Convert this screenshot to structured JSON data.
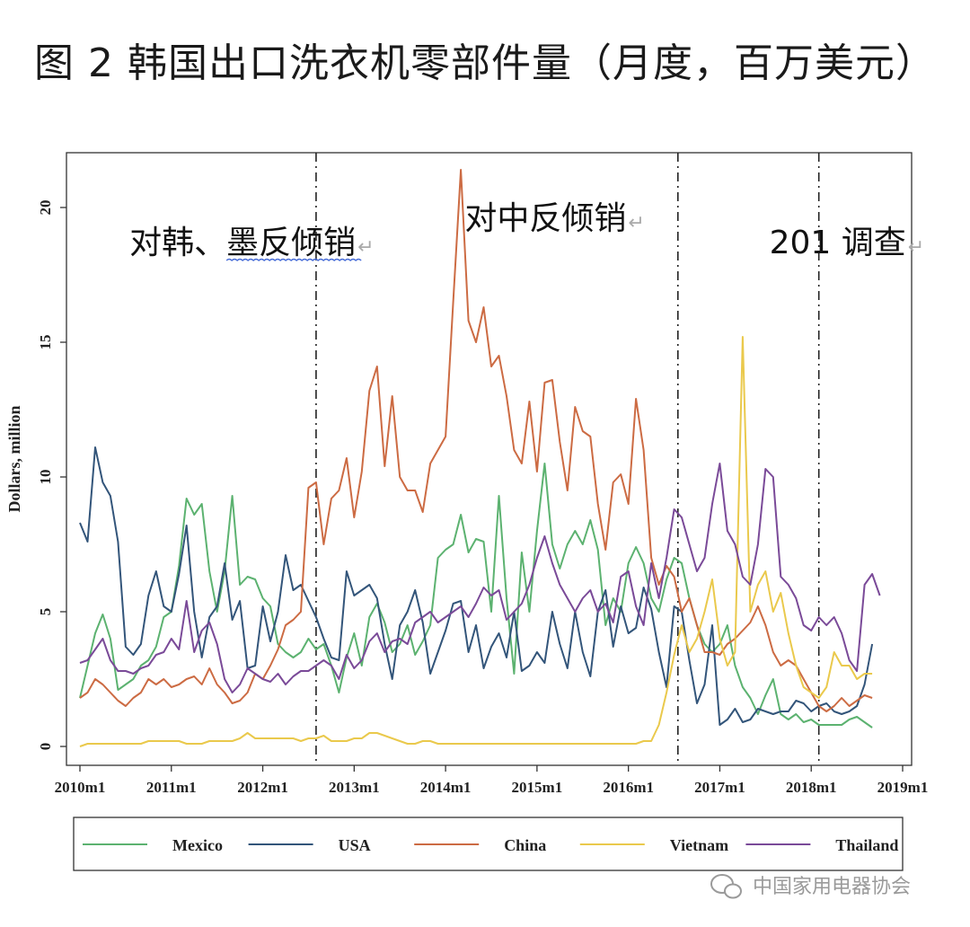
{
  "page_title": "图 2 韩国出口洗衣机零部件量（月度，百万美元）",
  "watermark": "中国家用电器协会",
  "chart_data": {
    "type": "line",
    "ylabel": "Dollars, million",
    "ylim": [
      0,
      22
    ],
    "yticks": [
      0,
      5,
      10,
      15,
      20
    ],
    "xlim": [
      0,
      108
    ],
    "xticks": [
      {
        "label": "2010m1",
        "value": 0
      },
      {
        "label": "2011m1",
        "value": 12
      },
      {
        "label": "2012m1",
        "value": 24
      },
      {
        "label": "2013m1",
        "value": 36
      },
      {
        "label": "2014m1",
        "value": 48
      },
      {
        "label": "2015m1",
        "value": 60
      },
      {
        "label": "2016m1",
        "value": 72
      },
      {
        "label": "2017m1",
        "value": 84
      },
      {
        "label": "2018m1",
        "value": 96
      },
      {
        "label": "2019m1",
        "value": 108
      }
    ],
    "vlines": [
      31,
      78.5,
      97
    ],
    "annotations": [
      {
        "text": "对韩、墨反倾销",
        "x": 6.5,
        "y": 18.3
      },
      {
        "text": "对中反倾销",
        "x": 50.5,
        "y": 19.2
      },
      {
        "text": "201 调查",
        "x": 90.5,
        "y": 18.3
      }
    ],
    "return_mark": "↵",
    "legend_position": "bottom",
    "series": [
      {
        "name": "Mexico",
        "color": "#5cb270",
        "values": [
          1.8,
          3.0,
          4.2,
          4.9,
          4.0,
          2.1,
          2.3,
          2.5,
          3.0,
          3.2,
          3.7,
          4.8,
          5.0,
          6.7,
          9.2,
          8.6,
          9.0,
          6.5,
          5.0,
          6.5,
          9.3,
          6.0,
          6.3,
          6.2,
          5.5,
          5.2,
          3.8,
          3.5,
          3.3,
          3.5,
          4.0,
          3.6,
          3.8,
          3.0,
          2.0,
          3.3,
          4.2,
          3.0,
          4.8,
          5.3,
          4.6,
          3.5,
          3.8,
          4.5,
          3.4,
          3.9,
          4.5,
          7.0,
          7.3,
          7.5,
          8.6,
          7.2,
          7.7,
          7.6,
          5.0,
          9.3,
          5.5,
          2.7,
          7.2,
          5.0,
          8.0,
          10.5,
          7.5,
          6.6,
          7.5,
          8.0,
          7.5,
          8.4,
          7.3,
          4.5,
          5.5,
          5.0,
          6.8,
          7.4,
          6.8,
          5.5,
          5.0,
          6.2,
          7.0,
          6.8,
          5.5,
          4.5,
          3.8,
          3.5,
          3.8,
          4.5,
          3.0,
          2.2,
          1.8,
          1.2,
          1.9,
          2.5,
          1.2,
          1.0,
          1.2,
          0.9,
          1.0,
          0.8,
          0.8,
          0.8,
          0.8,
          1.0,
          1.1,
          0.9,
          0.7
        ]
      },
      {
        "name": "USA",
        "color": "#33557a",
        "values": [
          8.3,
          7.6,
          11.1,
          9.8,
          9.3,
          7.6,
          3.7,
          3.4,
          3.8,
          5.6,
          6.5,
          5.2,
          5.0,
          6.4,
          8.2,
          5.0,
          3.3,
          4.8,
          5.2,
          6.8,
          4.7,
          5.4,
          2.9,
          3.0,
          5.2,
          3.9,
          5.0,
          7.1,
          5.8,
          6.0,
          5.4,
          4.8,
          4.0,
          3.3,
          3.2,
          6.5,
          5.6,
          5.8,
          6.0,
          5.5,
          3.8,
          2.5,
          4.5,
          5.0,
          5.8,
          4.6,
          2.7,
          3.5,
          4.3,
          5.3,
          5.4,
          3.5,
          4.5,
          2.9,
          3.7,
          4.2,
          3.3,
          5.0,
          2.8,
          3.0,
          3.5,
          3.1,
          5.0,
          3.8,
          2.9,
          5.0,
          3.5,
          2.6,
          5.0,
          5.8,
          3.7,
          5.2,
          4.2,
          4.4,
          5.9,
          5.1,
          3.5,
          2.2,
          5.2,
          5.0,
          3.2,
          1.6,
          2.3,
          4.5,
          0.8,
          1.0,
          1.4,
          0.9,
          1.0,
          1.4,
          1.3,
          1.2,
          1.3,
          1.3,
          1.7,
          1.6,
          1.3,
          1.5,
          1.6,
          1.3,
          1.2,
          1.3,
          1.5,
          2.3,
          3.8
        ]
      },
      {
        "name": "China",
        "color": "#cc6b43",
        "values": [
          1.8,
          2.0,
          2.5,
          2.3,
          2.0,
          1.7,
          1.5,
          1.8,
          2.0,
          2.5,
          2.3,
          2.5,
          2.2,
          2.3,
          2.5,
          2.6,
          2.3,
          2.9,
          2.3,
          2.0,
          1.6,
          1.7,
          2.0,
          2.7,
          2.5,
          3.0,
          3.6,
          4.5,
          4.7,
          5.0,
          9.6,
          9.8,
          7.5,
          9.2,
          9.5,
          10.7,
          8.5,
          10.2,
          13.2,
          14.1,
          10.4,
          13.0,
          10.0,
          9.5,
          9.5,
          8.7,
          10.5,
          11.0,
          11.5,
          16.5,
          21.4,
          15.8,
          15.0,
          16.3,
          14.1,
          14.5,
          13.0,
          11.0,
          10.5,
          12.8,
          10.2,
          13.5,
          13.6,
          11.3,
          9.5,
          12.6,
          11.7,
          11.5,
          9.0,
          7.3,
          9.8,
          10.1,
          9.0,
          12.9,
          11.0,
          7.0,
          6.0,
          6.7,
          6.3,
          5.0,
          5.5,
          4.5,
          3.5,
          3.5,
          3.4,
          3.8,
          4.0,
          4.3,
          4.6,
          5.2,
          4.5,
          3.5,
          3.0,
          3.2,
          3.0,
          2.5,
          2.0,
          1.5,
          1.3,
          1.5,
          1.8,
          1.5,
          1.7,
          1.9,
          1.8
        ]
      },
      {
        "name": "Vietnam",
        "color": "#eac94c",
        "values": [
          0.0,
          0.1,
          0.1,
          0.1,
          0.1,
          0.1,
          0.1,
          0.1,
          0.1,
          0.2,
          0.2,
          0.2,
          0.2,
          0.2,
          0.1,
          0.1,
          0.1,
          0.2,
          0.2,
          0.2,
          0.2,
          0.3,
          0.5,
          0.3,
          0.3,
          0.3,
          0.3,
          0.3,
          0.3,
          0.2,
          0.3,
          0.3,
          0.4,
          0.2,
          0.2,
          0.2,
          0.3,
          0.3,
          0.5,
          0.5,
          0.4,
          0.3,
          0.2,
          0.1,
          0.1,
          0.2,
          0.2,
          0.1,
          0.1,
          0.1,
          0.1,
          0.1,
          0.1,
          0.1,
          0.1,
          0.1,
          0.1,
          0.1,
          0.1,
          0.1,
          0.1,
          0.1,
          0.1,
          0.1,
          0.1,
          0.1,
          0.1,
          0.1,
          0.1,
          0.1,
          0.1,
          0.1,
          0.1,
          0.1,
          0.2,
          0.2,
          0.8,
          2.0,
          3.4,
          4.5,
          3.5,
          4.0,
          5.0,
          6.2,
          4.0,
          3.0,
          3.5,
          15.2,
          5.0,
          6.0,
          6.5,
          5.0,
          5.7,
          4.2,
          3.0,
          2.2,
          2.0,
          1.8,
          2.2,
          3.5,
          3.0,
          3.0,
          2.5,
          2.7,
          2.7
        ]
      },
      {
        "name": "Thailand",
        "color": "#7a4a98",
        "values": [
          3.1,
          3.2,
          3.6,
          4.0,
          3.2,
          2.8,
          2.8,
          2.7,
          2.9,
          3.0,
          3.4,
          3.5,
          4.0,
          3.6,
          5.4,
          3.5,
          4.3,
          4.6,
          3.8,
          2.5,
          2.0,
          2.3,
          2.9,
          2.7,
          2.5,
          2.4,
          2.7,
          2.3,
          2.6,
          2.8,
          2.8,
          3.0,
          3.2,
          3.0,
          2.5,
          3.4,
          2.9,
          3.2,
          3.9,
          4.2,
          3.5,
          3.9,
          4.0,
          3.8,
          4.6,
          4.8,
          5.0,
          4.6,
          4.8,
          5.0,
          5.2,
          4.8,
          5.3,
          5.9,
          5.6,
          5.8,
          4.7,
          5.0,
          5.3,
          6.0,
          7.0,
          7.8,
          6.8,
          6.0,
          5.5,
          5.0,
          5.5,
          5.8,
          5.0,
          5.3,
          4.6,
          6.3,
          6.5,
          5.2,
          4.5,
          6.8,
          5.5,
          7.0,
          8.8,
          8.5,
          7.5,
          6.5,
          7.0,
          9.0,
          10.5,
          8.0,
          7.5,
          6.3,
          6.0,
          7.5,
          10.3,
          10.0,
          6.3,
          6.0,
          5.5,
          4.5,
          4.3,
          4.8,
          4.5,
          4.8,
          4.2,
          3.2,
          2.8,
          6.0,
          6.4,
          5.6
        ]
      }
    ]
  }
}
